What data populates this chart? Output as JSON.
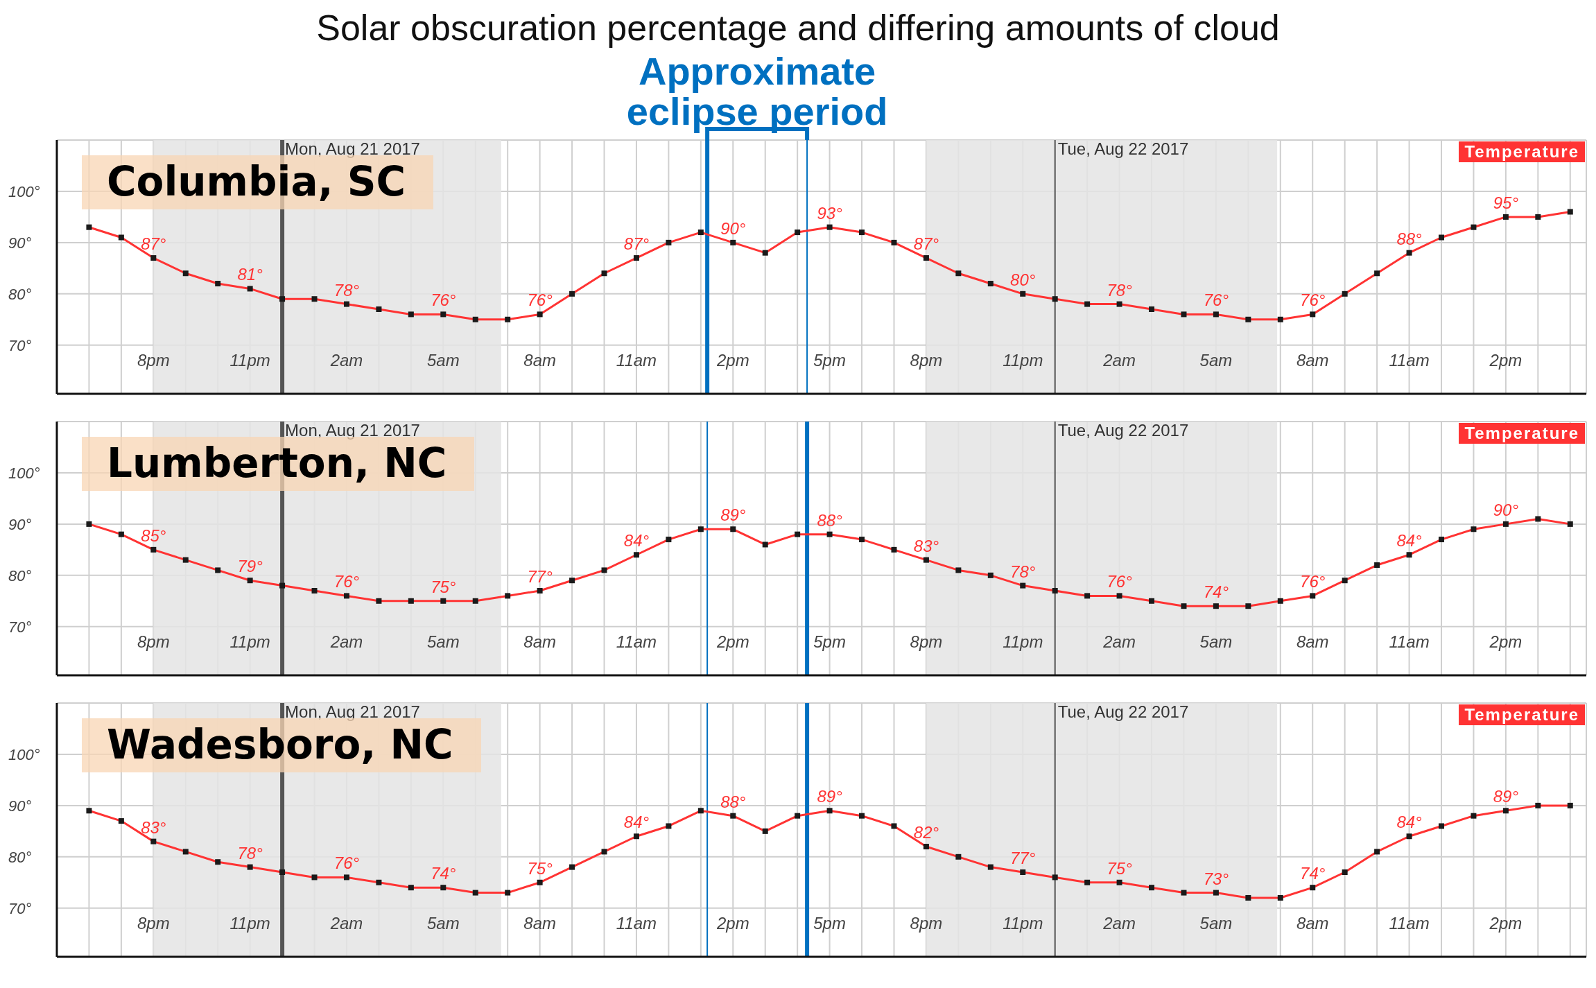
{
  "chart_data": [
    {
      "type": "line",
      "title": "Columbia, SC",
      "annotations": [
        "Solar obscuration percentage and differing amounts of cloud"
      ],
      "x": [
        "2017-08-20T18:00",
        "2017-08-20T19:00",
        "2017-08-20T20:00",
        "2017-08-20T21:00",
        "2017-08-20T22:00",
        "2017-08-20T23:00",
        "2017-08-21T00:00",
        "2017-08-21T01:00",
        "2017-08-21T02:00",
        "2017-08-21T03:00",
        "2017-08-21T04:00",
        "2017-08-21T05:00",
        "2017-08-21T06:00",
        "2017-08-21T07:00",
        "2017-08-21T08:00",
        "2017-08-21T09:00",
        "2017-08-21T10:00",
        "2017-08-21T11:00",
        "2017-08-21T12:00",
        "2017-08-21T13:00",
        "2017-08-21T14:00",
        "2017-08-21T15:00",
        "2017-08-21T16:00",
        "2017-08-21T17:00",
        "2017-08-21T18:00",
        "2017-08-21T19:00",
        "2017-08-21T20:00",
        "2017-08-21T21:00",
        "2017-08-21T22:00",
        "2017-08-21T23:00",
        "2017-08-22T00:00",
        "2017-08-22T01:00",
        "2017-08-22T02:00",
        "2017-08-22T03:00",
        "2017-08-22T04:00",
        "2017-08-22T05:00",
        "2017-08-22T06:00",
        "2017-08-22T07:00",
        "2017-08-22T08:00",
        "2017-08-22T09:00",
        "2017-08-22T10:00",
        "2017-08-22T11:00",
        "2017-08-22T12:00",
        "2017-08-22T13:00",
        "2017-08-22T14:00",
        "2017-08-22T15:00",
        "2017-08-22T16:00"
      ],
      "xlim": [
        "2017-08-20T17:00",
        "2017-08-22T16:30"
      ],
      "xticks": [
        {
          "value": "2017-08-20T18:00",
          "label": null
        },
        {
          "value": "2017-08-20T19:00",
          "label": null
        },
        {
          "value": "2017-08-20T20:00",
          "label": "8pm"
        },
        {
          "value": "2017-08-20T21:00",
          "label": null
        },
        {
          "value": "2017-08-20T22:00",
          "label": null
        },
        {
          "value": "2017-08-20T23:00",
          "label": "11pm"
        },
        {
          "value": "2017-08-21T00:00",
          "label": null
        },
        {
          "value": "2017-08-21T01:00",
          "label": null
        },
        {
          "value": "2017-08-21T02:00",
          "label": "2am"
        },
        {
          "value": "2017-08-21T03:00",
          "label": null
        },
        {
          "value": "2017-08-21T04:00",
          "label": null
        },
        {
          "value": "2017-08-21T05:00",
          "label": "5am"
        },
        {
          "value": "2017-08-21T06:00",
          "label": null
        },
        {
          "value": "2017-08-21T07:00",
          "label": null
        },
        {
          "value": "2017-08-21T08:00",
          "label": "8am"
        },
        {
          "value": "2017-08-21T09:00",
          "label": null
        },
        {
          "value": "2017-08-21T10:00",
          "label": null
        },
        {
          "value": "2017-08-21T11:00",
          "label": "11am"
        },
        {
          "value": "2017-08-21T12:00",
          "label": null
        },
        {
          "value": "2017-08-21T13:00",
          "label": null
        },
        {
          "value": "2017-08-21T14:00",
          "label": "2pm"
        },
        {
          "value": "2017-08-21T15:00",
          "label": null
        },
        {
          "value": "2017-08-21T16:00",
          "label": null
        },
        {
          "value": "2017-08-21T17:00",
          "label": "5pm"
        },
        {
          "value": "2017-08-21T18:00",
          "label": null
        },
        {
          "value": "2017-08-21T19:00",
          "label": null
        },
        {
          "value": "2017-08-21T20:00",
          "label": "8pm"
        },
        {
          "value": "2017-08-21T21:00",
          "label": null
        },
        {
          "value": "2017-08-21T22:00",
          "label": null
        },
        {
          "value": "2017-08-21T23:00",
          "label": "11pm"
        },
        {
          "value": "2017-08-22T00:00",
          "label": null
        },
        {
          "value": "2017-08-22T01:00",
          "label": null
        },
        {
          "value": "2017-08-22T02:00",
          "label": "2am"
        },
        {
          "value": "2017-08-22T03:00",
          "label": null
        },
        {
          "value": "2017-08-22T04:00",
          "label": null
        },
        {
          "value": "2017-08-22T05:00",
          "label": "5am"
        },
        {
          "value": "2017-08-22T06:00",
          "label": null
        },
        {
          "value": "2017-08-22T07:00",
          "label": null
        },
        {
          "value": "2017-08-22T08:00",
          "label": "8am"
        },
        {
          "value": "2017-08-22T09:00",
          "label": null
        },
        {
          "value": "2017-08-22T10:00",
          "label": null
        },
        {
          "value": "2017-08-22T11:00",
          "label": "11am"
        },
        {
          "value": "2017-08-22T12:00",
          "label": null
        },
        {
          "value": "2017-08-22T13:00",
          "label": null
        },
        {
          "value": "2017-08-22T14:00",
          "label": "2pm"
        },
        {
          "value": "2017-08-22T15:00",
          "label": null
        },
        {
          "value": "2017-08-22T16:00",
          "label": null
        }
      ],
      "ylim": [
        60.5,
        110
      ],
      "yticks": [
        {
          "value": 70,
          "label": "70°"
        },
        {
          "value": 80,
          "label": "80°"
        },
        {
          "value": 90,
          "label": "90°"
        },
        {
          "value": 100,
          "label": "100°"
        }
      ],
      "grid": true,
      "legend": "top right",
      "marker": "square",
      "bands": [
        {
          "axis": "x",
          "from": "2017-08-20T20:00",
          "to": "2017-08-21T06:48",
          "color": "#e4e4e4"
        },
        {
          "axis": "x",
          "from": "2017-08-21T20:00",
          "to": "2017-08-22T06:54",
          "color": "#e4e4e4"
        }
      ],
      "ref_lines": [
        {
          "axis": "x",
          "value": "2017-08-21T00:00",
          "label": "Mon, Aug 21 2017",
          "color": "#555555"
        },
        {
          "axis": "x",
          "value": "2017-08-22T00:00",
          "label": "Tue, Aug 22 2017",
          "color": "#555555"
        },
        {
          "axis": "x",
          "value": "2017-08-21T13:12",
          "label": "Approximate eclipse period",
          "color": "#0070c0"
        },
        {
          "axis": "x",
          "value": "2017-08-21T16:18",
          "color": "#0070c0"
        }
      ],
      "series": [
        {
          "name": "Temperature",
          "color": "#ff3333",
          "values": [
            93,
            91,
            87,
            84,
            82,
            81,
            79,
            79,
            78,
            77,
            76,
            76,
            75,
            75,
            76,
            80,
            84,
            87,
            90,
            92,
            90,
            88,
            92,
            93,
            92,
            90,
            87,
            84,
            82,
            80,
            79,
            78,
            78,
            77,
            76,
            76,
            75,
            75,
            76,
            80,
            84,
            88,
            91,
            93,
            95,
            95,
            96
          ],
          "value_labels": [
            null,
            null,
            "87°",
            null,
            null,
            "81°",
            null,
            null,
            "78°",
            null,
            null,
            "76°",
            null,
            null,
            "76°",
            null,
            null,
            "87°",
            null,
            null,
            "90°",
            null,
            null,
            "93°",
            null,
            null,
            "87°",
            null,
            null,
            "80°",
            null,
            null,
            "78°",
            null,
            null,
            "76°",
            null,
            null,
            "76°",
            null,
            null,
            "88°",
            null,
            null,
            "95°",
            null,
            null
          ]
        }
      ]
    },
    {
      "type": "line",
      "title": "Lumberton, NC",
      "x": [
        "2017-08-20T18:00",
        "2017-08-20T19:00",
        "2017-08-20T20:00",
        "2017-08-20T21:00",
        "2017-08-20T22:00",
        "2017-08-20T23:00",
        "2017-08-21T00:00",
        "2017-08-21T01:00",
        "2017-08-21T02:00",
        "2017-08-21T03:00",
        "2017-08-21T04:00",
        "2017-08-21T05:00",
        "2017-08-21T06:00",
        "2017-08-21T07:00",
        "2017-08-21T08:00",
        "2017-08-21T09:00",
        "2017-08-21T10:00",
        "2017-08-21T11:00",
        "2017-08-21T12:00",
        "2017-08-21T13:00",
        "2017-08-21T14:00",
        "2017-08-21T15:00",
        "2017-08-21T16:00",
        "2017-08-21T17:00",
        "2017-08-21T18:00",
        "2017-08-21T19:00",
        "2017-08-21T20:00",
        "2017-08-21T21:00",
        "2017-08-21T22:00",
        "2017-08-21T23:00",
        "2017-08-22T00:00",
        "2017-08-22T01:00",
        "2017-08-22T02:00",
        "2017-08-22T03:00",
        "2017-08-22T04:00",
        "2017-08-22T05:00",
        "2017-08-22T06:00",
        "2017-08-22T07:00",
        "2017-08-22T08:00",
        "2017-08-22T09:00",
        "2017-08-22T10:00",
        "2017-08-22T11:00",
        "2017-08-22T12:00",
        "2017-08-22T13:00",
        "2017-08-22T14:00",
        "2017-08-22T15:00",
        "2017-08-22T16:00"
      ],
      "xlim": [
        "2017-08-20T17:00",
        "2017-08-22T16:30"
      ],
      "xticks": [
        {
          "value": "2017-08-20T18:00",
          "label": null
        },
        {
          "value": "2017-08-20T19:00",
          "label": null
        },
        {
          "value": "2017-08-20T20:00",
          "label": "8pm"
        },
        {
          "value": "2017-08-20T21:00",
          "label": null
        },
        {
          "value": "2017-08-20T22:00",
          "label": null
        },
        {
          "value": "2017-08-20T23:00",
          "label": "11pm"
        },
        {
          "value": "2017-08-21T00:00",
          "label": null
        },
        {
          "value": "2017-08-21T01:00",
          "label": null
        },
        {
          "value": "2017-08-21T02:00",
          "label": "2am"
        },
        {
          "value": "2017-08-21T03:00",
          "label": null
        },
        {
          "value": "2017-08-21T04:00",
          "label": null
        },
        {
          "value": "2017-08-21T05:00",
          "label": "5am"
        },
        {
          "value": "2017-08-21T06:00",
          "label": null
        },
        {
          "value": "2017-08-21T07:00",
          "label": null
        },
        {
          "value": "2017-08-21T08:00",
          "label": "8am"
        },
        {
          "value": "2017-08-21T09:00",
          "label": null
        },
        {
          "value": "2017-08-21T10:00",
          "label": null
        },
        {
          "value": "2017-08-21T11:00",
          "label": "11am"
        },
        {
          "value": "2017-08-21T12:00",
          "label": null
        },
        {
          "value": "2017-08-21T13:00",
          "label": null
        },
        {
          "value": "2017-08-21T14:00",
          "label": "2pm"
        },
        {
          "value": "2017-08-21T15:00",
          "label": null
        },
        {
          "value": "2017-08-21T16:00",
          "label": null
        },
        {
          "value": "2017-08-21T17:00",
          "label": "5pm"
        },
        {
          "value": "2017-08-21T18:00",
          "label": null
        },
        {
          "value": "2017-08-21T19:00",
          "label": null
        },
        {
          "value": "2017-08-21T20:00",
          "label": "8pm"
        },
        {
          "value": "2017-08-21T21:00",
          "label": null
        },
        {
          "value": "2017-08-21T22:00",
          "label": null
        },
        {
          "value": "2017-08-21T23:00",
          "label": "11pm"
        },
        {
          "value": "2017-08-22T00:00",
          "label": null
        },
        {
          "value": "2017-08-22T01:00",
          "label": null
        },
        {
          "value": "2017-08-22T02:00",
          "label": "2am"
        },
        {
          "value": "2017-08-22T03:00",
          "label": null
        },
        {
          "value": "2017-08-22T04:00",
          "label": null
        },
        {
          "value": "2017-08-22T05:00",
          "label": "5am"
        },
        {
          "value": "2017-08-22T06:00",
          "label": null
        },
        {
          "value": "2017-08-22T07:00",
          "label": null
        },
        {
          "value": "2017-08-22T08:00",
          "label": "8am"
        },
        {
          "value": "2017-08-22T09:00",
          "label": null
        },
        {
          "value": "2017-08-22T10:00",
          "label": null
        },
        {
          "value": "2017-08-22T11:00",
          "label": "11am"
        },
        {
          "value": "2017-08-22T12:00",
          "label": null
        },
        {
          "value": "2017-08-22T13:00",
          "label": null
        },
        {
          "value": "2017-08-22T14:00",
          "label": "2pm"
        },
        {
          "value": "2017-08-22T15:00",
          "label": null
        },
        {
          "value": "2017-08-22T16:00",
          "label": null
        }
      ],
      "ylim": [
        60.5,
        110
      ],
      "yticks": [
        {
          "value": 70,
          "label": "70°"
        },
        {
          "value": 80,
          "label": "80°"
        },
        {
          "value": 90,
          "label": "90°"
        },
        {
          "value": 100,
          "label": "100°"
        }
      ],
      "grid": true,
      "legend": "top right",
      "marker": "square",
      "bands": [
        {
          "axis": "x",
          "from": "2017-08-20T20:00",
          "to": "2017-08-21T06:48",
          "color": "#e4e4e4"
        },
        {
          "axis": "x",
          "from": "2017-08-21T20:00",
          "to": "2017-08-22T06:54",
          "color": "#e4e4e4"
        }
      ],
      "ref_lines": [
        {
          "axis": "x",
          "value": "2017-08-21T00:00",
          "label": "Mon, Aug 21 2017",
          "color": "#555555"
        },
        {
          "axis": "x",
          "value": "2017-08-22T00:00",
          "label": "Tue, Aug 22 2017",
          "color": "#555555"
        },
        {
          "axis": "x",
          "value": "2017-08-21T13:12",
          "color": "#0070c0"
        },
        {
          "axis": "x",
          "value": "2017-08-21T16:18",
          "color": "#0070c0"
        }
      ],
      "series": [
        {
          "name": "Temperature",
          "color": "#ff3333",
          "values": [
            90,
            88,
            85,
            83,
            81,
            79,
            78,
            77,
            76,
            75,
            75,
            75,
            75,
            76,
            77,
            79,
            81,
            84,
            87,
            89,
            89,
            86,
            88,
            88,
            87,
            85,
            83,
            81,
            80,
            78,
            77,
            76,
            76,
            75,
            74,
            74,
            74,
            75,
            76,
            79,
            82,
            84,
            87,
            89,
            90,
            91,
            90
          ],
          "value_labels": [
            null,
            null,
            "85°",
            null,
            null,
            "79°",
            null,
            null,
            "76°",
            null,
            null,
            "75°",
            null,
            null,
            "77°",
            null,
            null,
            "84°",
            null,
            null,
            "89°",
            null,
            null,
            "88°",
            null,
            null,
            "83°",
            null,
            null,
            "78°",
            null,
            null,
            "76°",
            null,
            null,
            "74°",
            null,
            null,
            "76°",
            null,
            null,
            "84°",
            null,
            null,
            "90°",
            null,
            null
          ]
        }
      ]
    },
    {
      "type": "line",
      "title": "Wadesboro, NC",
      "x": [
        "2017-08-20T18:00",
        "2017-08-20T19:00",
        "2017-08-20T20:00",
        "2017-08-20T21:00",
        "2017-08-20T22:00",
        "2017-08-20T23:00",
        "2017-08-21T00:00",
        "2017-08-21T01:00",
        "2017-08-21T02:00",
        "2017-08-21T03:00",
        "2017-08-21T04:00",
        "2017-08-21T05:00",
        "2017-08-21T06:00",
        "2017-08-21T07:00",
        "2017-08-21T08:00",
        "2017-08-21T09:00",
        "2017-08-21T10:00",
        "2017-08-21T11:00",
        "2017-08-21T12:00",
        "2017-08-21T13:00",
        "2017-08-21T14:00",
        "2017-08-21T15:00",
        "2017-08-21T16:00",
        "2017-08-21T17:00",
        "2017-08-21T18:00",
        "2017-08-21T19:00",
        "2017-08-21T20:00",
        "2017-08-21T21:00",
        "2017-08-21T22:00",
        "2017-08-21T23:00",
        "2017-08-22T00:00",
        "2017-08-22T01:00",
        "2017-08-22T02:00",
        "2017-08-22T03:00",
        "2017-08-22T04:00",
        "2017-08-22T05:00",
        "2017-08-22T06:00",
        "2017-08-22T07:00",
        "2017-08-22T08:00",
        "2017-08-22T09:00",
        "2017-08-22T10:00",
        "2017-08-22T11:00",
        "2017-08-22T12:00",
        "2017-08-22T13:00",
        "2017-08-22T14:00",
        "2017-08-22T15:00",
        "2017-08-22T16:00"
      ],
      "xlim": [
        "2017-08-20T17:00",
        "2017-08-22T16:30"
      ],
      "xticks": [
        {
          "value": "2017-08-20T18:00",
          "label": null
        },
        {
          "value": "2017-08-20T19:00",
          "label": null
        },
        {
          "value": "2017-08-20T20:00",
          "label": "8pm"
        },
        {
          "value": "2017-08-20T21:00",
          "label": null
        },
        {
          "value": "2017-08-20T22:00",
          "label": null
        },
        {
          "value": "2017-08-20T23:00",
          "label": "11pm"
        },
        {
          "value": "2017-08-21T00:00",
          "label": null
        },
        {
          "value": "2017-08-21T01:00",
          "label": null
        },
        {
          "value": "2017-08-21T02:00",
          "label": "2am"
        },
        {
          "value": "2017-08-21T03:00",
          "label": null
        },
        {
          "value": "2017-08-21T04:00",
          "label": null
        },
        {
          "value": "2017-08-21T05:00",
          "label": "5am"
        },
        {
          "value": "2017-08-21T06:00",
          "label": null
        },
        {
          "value": "2017-08-21T07:00",
          "label": null
        },
        {
          "value": "2017-08-21T08:00",
          "label": "8am"
        },
        {
          "value": "2017-08-21T09:00",
          "label": null
        },
        {
          "value": "2017-08-21T10:00",
          "label": null
        },
        {
          "value": "2017-08-21T11:00",
          "label": "11am"
        },
        {
          "value": "2017-08-21T12:00",
          "label": null
        },
        {
          "value": "2017-08-21T13:00",
          "label": null
        },
        {
          "value": "2017-08-21T14:00",
          "label": "2pm"
        },
        {
          "value": "2017-08-21T15:00",
          "label": null
        },
        {
          "value": "2017-08-21T16:00",
          "label": null
        },
        {
          "value": "2017-08-21T17:00",
          "label": "5pm"
        },
        {
          "value": "2017-08-21T18:00",
          "label": null
        },
        {
          "value": "2017-08-21T19:00",
          "label": null
        },
        {
          "value": "2017-08-21T20:00",
          "label": "8pm"
        },
        {
          "value": "2017-08-21T21:00",
          "label": null
        },
        {
          "value": "2017-08-21T22:00",
          "label": null
        },
        {
          "value": "2017-08-21T23:00",
          "label": "11pm"
        },
        {
          "value": "2017-08-22T00:00",
          "label": null
        },
        {
          "value": "2017-08-22T01:00",
          "label": null
        },
        {
          "value": "2017-08-22T02:00",
          "label": "2am"
        },
        {
          "value": "2017-08-22T03:00",
          "label": null
        },
        {
          "value": "2017-08-22T04:00",
          "label": null
        },
        {
          "value": "2017-08-22T05:00",
          "label": "5am"
        },
        {
          "value": "2017-08-22T06:00",
          "label": null
        },
        {
          "value": "2017-08-22T07:00",
          "label": null
        },
        {
          "value": "2017-08-22T08:00",
          "label": "8am"
        },
        {
          "value": "2017-08-22T09:00",
          "label": null
        },
        {
          "value": "2017-08-22T10:00",
          "label": null
        },
        {
          "value": "2017-08-22T11:00",
          "label": "11am"
        },
        {
          "value": "2017-08-22T12:00",
          "label": null
        },
        {
          "value": "2017-08-22T13:00",
          "label": null
        },
        {
          "value": "2017-08-22T14:00",
          "label": "2pm"
        },
        {
          "value": "2017-08-22T15:00",
          "label": null
        },
        {
          "value": "2017-08-22T16:00",
          "label": null
        }
      ],
      "ylim": [
        60.5,
        110
      ],
      "yticks": [
        {
          "value": 70,
          "label": "70°"
        },
        {
          "value": 80,
          "label": "80°"
        },
        {
          "value": 90,
          "label": "90°"
        },
        {
          "value": 100,
          "label": "100°"
        }
      ],
      "grid": true,
      "legend": "top right",
      "marker": "square",
      "bands": [
        {
          "axis": "x",
          "from": "2017-08-20T20:00",
          "to": "2017-08-21T06:48",
          "color": "#e4e4e4"
        },
        {
          "axis": "x",
          "from": "2017-08-21T20:00",
          "to": "2017-08-22T06:54",
          "color": "#e4e4e4"
        }
      ],
      "ref_lines": [
        {
          "axis": "x",
          "value": "2017-08-21T00:00",
          "label": "Mon, Aug 21 2017",
          "color": "#555555"
        },
        {
          "axis": "x",
          "value": "2017-08-22T00:00",
          "label": "Tue, Aug 22 2017",
          "color": "#555555"
        },
        {
          "axis": "x",
          "value": "2017-08-21T13:12",
          "color": "#0070c0"
        },
        {
          "axis": "x",
          "value": "2017-08-21T16:18",
          "color": "#0070c0"
        }
      ],
      "series": [
        {
          "name": "Temperature",
          "color": "#ff3333",
          "values": [
            89,
            87,
            83,
            81,
            79,
            78,
            77,
            76,
            76,
            75,
            74,
            74,
            73,
            73,
            75,
            78,
            81,
            84,
            86,
            89,
            88,
            85,
            88,
            89,
            88,
            86,
            82,
            80,
            78,
            77,
            76,
            75,
            75,
            74,
            73,
            73,
            72,
            72,
            74,
            77,
            81,
            84,
            86,
            88,
            89,
            90,
            90
          ],
          "value_labels": [
            null,
            null,
            "83°",
            null,
            null,
            "78°",
            null,
            null,
            "76°",
            null,
            null,
            "74°",
            null,
            null,
            "75°",
            null,
            null,
            "84°",
            null,
            null,
            "88°",
            null,
            null,
            "89°",
            null,
            null,
            "82°",
            null,
            null,
            "77°",
            null,
            null,
            "75°",
            null,
            null,
            "73°",
            null,
            null,
            "74°",
            null,
            null,
            "84°",
            null,
            null,
            "89°",
            null,
            null
          ]
        }
      ]
    }
  ]
}
